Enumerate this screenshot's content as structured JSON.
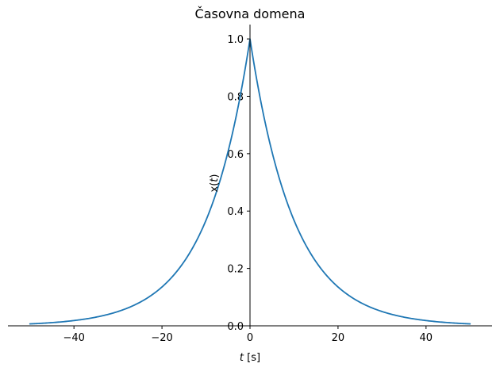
{
  "chart_data": {
    "type": "line",
    "title": "Časovna domena",
    "xlabel": {
      "var": "t",
      "unit": "[s]"
    },
    "ylabel": {
      "prefix": "x(",
      "var": "t",
      "suffix": ")"
    },
    "xlim": [
      -55,
      55
    ],
    "ylim": [
      0,
      1.05
    ],
    "xticks": [
      -40,
      -20,
      0,
      20,
      40
    ],
    "xtick_labels": [
      "−40",
      "−20",
      "0",
      "20",
      "40"
    ],
    "yticks": [
      0.0,
      0.2,
      0.4,
      0.6,
      0.8,
      1.0
    ],
    "ytick_labels": [
      "0.0",
      "0.2",
      "0.4",
      "0.6",
      "0.8",
      "1.0"
    ],
    "grid": false,
    "spines": "centered-at-zero",
    "series": [
      {
        "color": "#1f77b4",
        "function": "exp(-|t|/10)",
        "x": [
          -50,
          -45,
          -40,
          -35,
          -30,
          -25,
          -20,
          -15,
          -10,
          -5,
          0,
          5,
          10,
          15,
          20,
          25,
          30,
          35,
          40,
          45,
          50
        ],
        "y": [
          0.0067,
          0.0111,
          0.0183,
          0.0302,
          0.0498,
          0.0821,
          0.1353,
          0.2231,
          0.3679,
          0.6065,
          1.0,
          0.6065,
          0.3679,
          0.2231,
          0.1353,
          0.0821,
          0.0498,
          0.0302,
          0.0183,
          0.0111,
          0.0067
        ]
      }
    ]
  }
}
